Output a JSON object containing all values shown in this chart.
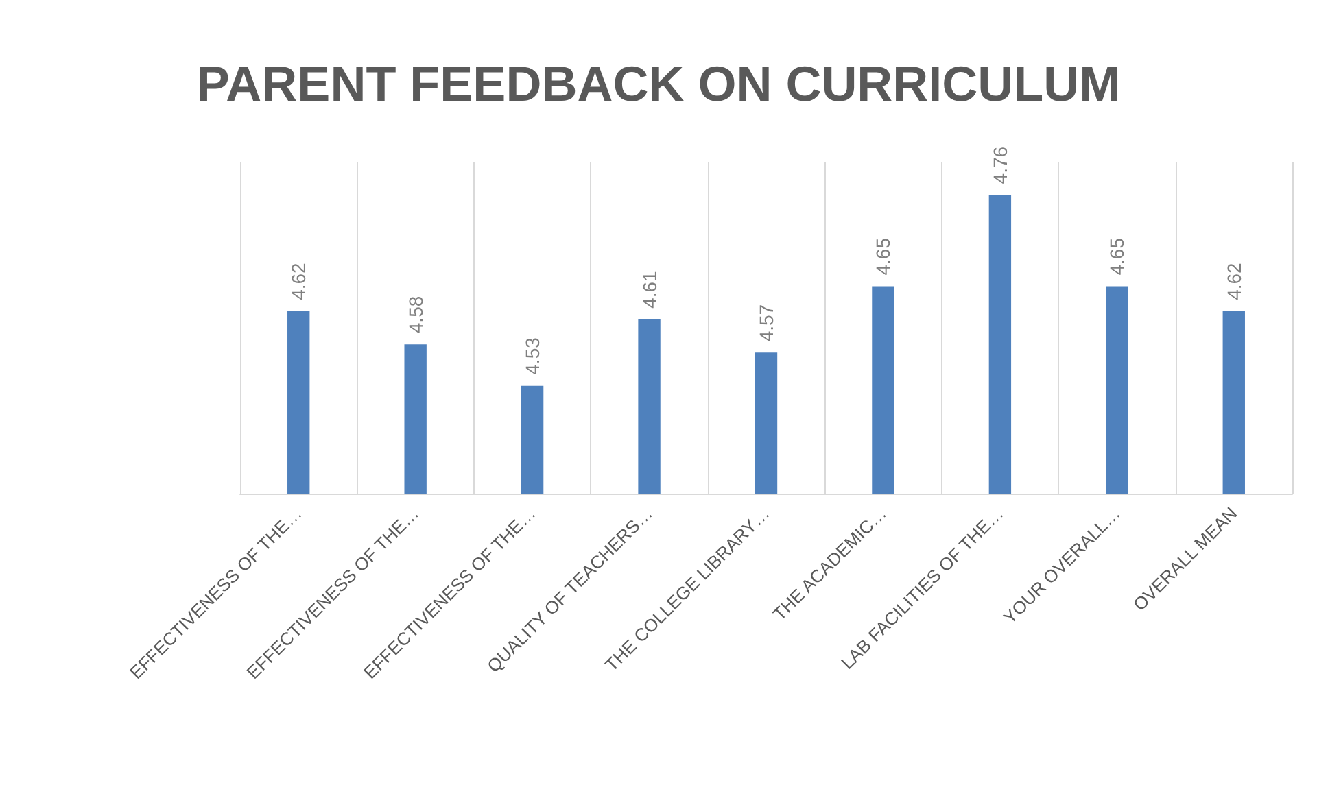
{
  "chart_data": {
    "type": "bar",
    "title": "PARENT FEEDBACK ON CURRICULUM",
    "categories": [
      "EFFECTIVENESS OF THE…",
      "EFFECTIVENESS OF THE…",
      "EFFECTIVENESS OF THE…",
      "QUALITY OF TEACHERS…",
      "THE COLLEGE LIBRARY…",
      "THE ACADEMIC…",
      "LAB FACILITIES OF THE…",
      "YOUR OVERALL…",
      "OVERALL MEAN"
    ],
    "values": [
      4.62,
      4.58,
      4.53,
      4.61,
      4.57,
      4.65,
      4.76,
      4.65,
      4.62
    ],
    "color": "#4f81bd",
    "ylim": [
      4.4,
      4.8
    ],
    "tick_labels": "x",
    "grid": "x",
    "data_labels": true
  }
}
